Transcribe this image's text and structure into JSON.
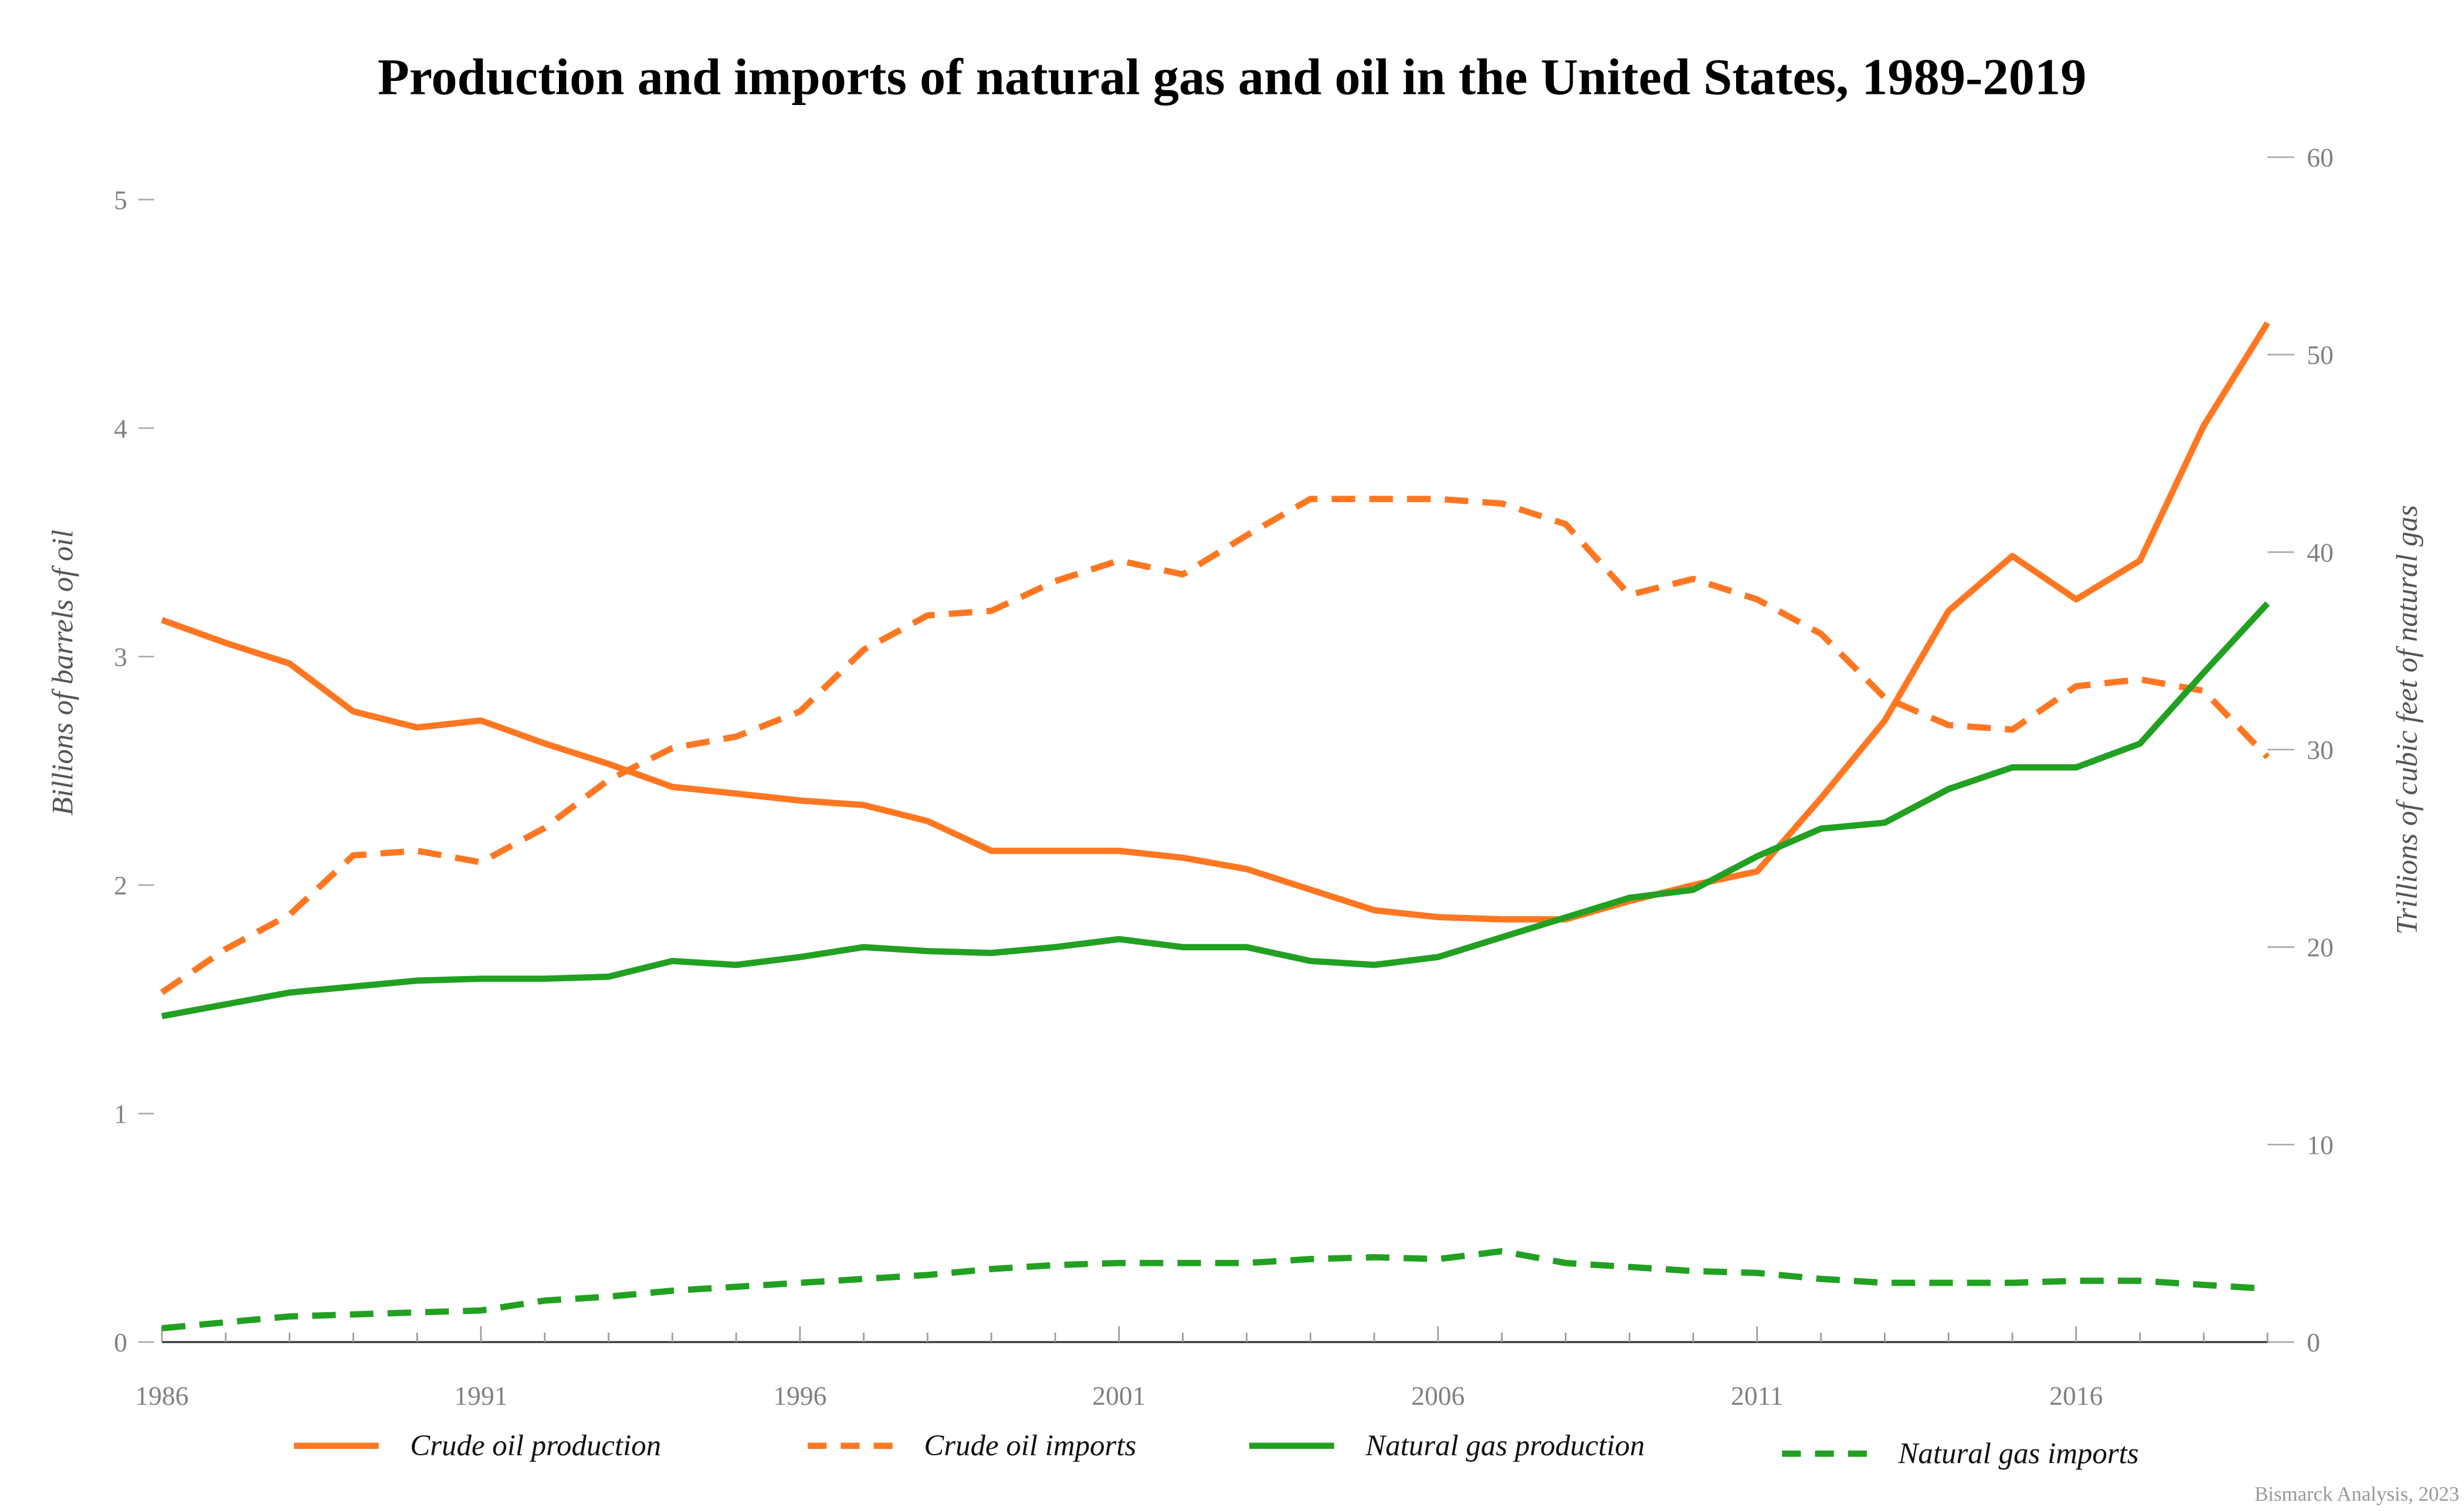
{
  "chart_data": {
    "type": "line",
    "title": "Production and imports of natural gas and oil in the United States, 1989-2019",
    "ylabel": "Billions of barrels of oil",
    "y2label": "Trillions of cubic feet of natural gas",
    "xlim": [
      1986,
      2019
    ],
    "ylim": [
      0,
      5
    ],
    "y2lim": [
      0,
      60
    ],
    "xticks": [
      "1986",
      "1991",
      "1996",
      "2001",
      "2006",
      "2011",
      "2016"
    ],
    "yticks": [
      "0",
      "1",
      "2",
      "3",
      "4",
      "5"
    ],
    "y2ticks": [
      "0",
      "10",
      "20",
      "30",
      "40",
      "50",
      "60"
    ],
    "grid": false,
    "legend_position": "bottom",
    "x": [
      1986,
      1987,
      1988,
      1989,
      1990,
      1991,
      1992,
      1993,
      1994,
      1995,
      1996,
      1997,
      1998,
      1999,
      2000,
      2001,
      2002,
      2003,
      2004,
      2005,
      2006,
      2007,
      2008,
      2009,
      2010,
      2011,
      2012,
      2013,
      2014,
      2015,
      2016,
      2017,
      2018,
      2019
    ],
    "series": [
      {
        "name": "Crude oil production",
        "axis": "left",
        "style": "solid",
        "color": "#ff7722",
        "values": [
          3.16,
          3.06,
          2.97,
          2.76,
          2.69,
          2.72,
          2.62,
          2.53,
          2.43,
          2.4,
          2.37,
          2.35,
          2.28,
          2.15,
          2.15,
          2.15,
          2.12,
          2.07,
          1.98,
          1.89,
          1.86,
          1.85,
          1.85,
          1.93,
          2.0,
          2.06,
          2.38,
          2.72,
          3.2,
          3.44,
          3.25,
          3.42,
          4.01,
          4.46
        ]
      },
      {
        "name": "Crude oil imports",
        "axis": "left",
        "style": "dashed",
        "color": "#ff7722",
        "values": [
          1.53,
          1.72,
          1.87,
          2.13,
          2.15,
          2.1,
          2.25,
          2.46,
          2.6,
          2.65,
          2.76,
          3.03,
          3.18,
          3.2,
          3.33,
          3.42,
          3.36,
          3.53,
          3.69,
          3.69,
          3.69,
          3.67,
          3.58,
          3.27,
          3.34,
          3.25,
          3.1,
          2.82,
          2.7,
          2.68,
          2.87,
          2.9,
          2.85,
          2.56
        ]
      },
      {
        "name": "Natural gas production",
        "axis": "right",
        "style": "solid",
        "color": "#22a022",
        "values": [
          16.5,
          17.1,
          17.7,
          18.0,
          18.3,
          18.4,
          18.4,
          18.5,
          19.3,
          19.1,
          19.5,
          20.0,
          19.8,
          19.7,
          20.0,
          20.4,
          20.0,
          20.0,
          19.3,
          19.1,
          19.5,
          20.5,
          21.5,
          22.5,
          22.9,
          24.6,
          26.0,
          26.3,
          28.0,
          29.1,
          29.1,
          30.3,
          33.9,
          37.4
        ]
      },
      {
        "name": "Natural gas imports",
        "axis": "right",
        "style": "dashed",
        "color": "#22a022",
        "values": [
          0.7,
          1.0,
          1.3,
          1.4,
          1.5,
          1.6,
          2.1,
          2.3,
          2.6,
          2.8,
          3.0,
          3.2,
          3.4,
          3.7,
          3.9,
          4.0,
          4.0,
          4.0,
          4.2,
          4.3,
          4.2,
          4.6,
          4.0,
          3.8,
          3.6,
          3.5,
          3.2,
          3.0,
          3.0,
          3.0,
          3.1,
          3.1,
          2.9,
          2.7
        ]
      }
    ]
  },
  "footer": {
    "source": "Bismarck Analysis, 2023"
  }
}
